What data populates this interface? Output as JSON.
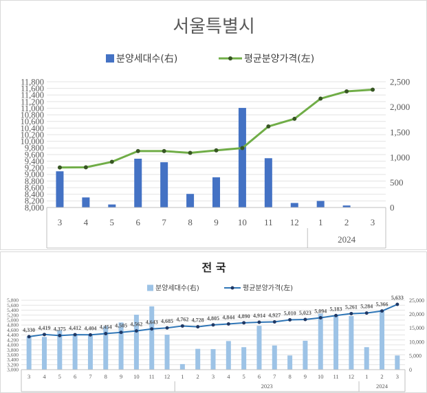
{
  "colors": {
    "bar_top": "#4472c4",
    "line_top": "#70ad47",
    "marker_top": "#375623",
    "bar_bottom": "#9dc3e6",
    "line_bottom": "#2e75b6",
    "marker_bottom": "#1f3864",
    "grid": "#e3e3e3",
    "axis_text": "#595959"
  },
  "chart_data": [
    {
      "type": "bar",
      "title": "서울특별시",
      "legend_position": "top",
      "grid": true,
      "categories": [
        "3",
        "4",
        "5",
        "6",
        "7",
        "8",
        "9",
        "10",
        "11",
        "12",
        "1",
        "2",
        "3"
      ],
      "year_group_labels": [
        {
          "label": "2024",
          "from": 10,
          "to": 12
        }
      ],
      "left_ticks": [
        "11,800",
        "11,600",
        "11,400",
        "11,200",
        "11,000",
        "10,800",
        "10,600",
        "10,400",
        "10,200",
        "10,000",
        "9,800",
        "9,600",
        "9,400",
        "9,200",
        "9,000",
        "8,800",
        "8,600",
        "8,400",
        "8,200",
        "8,000"
      ],
      "left_range": [
        8000,
        11800
      ],
      "right_ticks": [
        "2,500",
        "2,000",
        "1,500",
        "1,000",
        "500",
        "0"
      ],
      "right_range": [
        0,
        2500
      ],
      "series": [
        {
          "name": "분양세대수(右)",
          "kind": "bar",
          "axis": "right",
          "values": [
            720,
            200,
            60,
            970,
            900,
            270,
            600,
            1980,
            980,
            90,
            130,
            40,
            0
          ]
        },
        {
          "name": "평균분양가격(左)",
          "kind": "line",
          "axis": "left",
          "values": [
            9210,
            9215,
            9380,
            9705,
            9705,
            9650,
            9725,
            9795,
            10450,
            10680,
            11290,
            11510,
            11560
          ]
        }
      ]
    },
    {
      "type": "bar",
      "title": "전 국",
      "legend_position": "top",
      "grid": true,
      "categories": [
        "3",
        "4",
        "5",
        "6",
        "7",
        "8",
        "9",
        "10",
        "11",
        "12",
        "1",
        "2",
        "3",
        "4",
        "5",
        "6",
        "7",
        "8",
        "9",
        "10",
        "11",
        "12",
        "1",
        "2",
        "3"
      ],
      "year_group_labels": [
        {
          "label": "2023",
          "from": 10,
          "to": 21
        },
        {
          "label": "2024",
          "from": 22,
          "to": 24
        }
      ],
      "left_ticks": [
        "5,800",
        "5,600",
        "5,400",
        "5,200",
        "5,000",
        "4,800",
        "4,600",
        "4,400",
        "4,200",
        "4,000",
        "3,800",
        "3,600",
        "3,400",
        "3,200",
        "3,000"
      ],
      "left_range": [
        3000,
        5800
      ],
      "right_ticks": [
        "25,000",
        "20,000",
        "15,000",
        "10,000",
        "5,000",
        "0"
      ],
      "right_range": [
        0,
        25000
      ],
      "series": [
        {
          "name": "분양세대수(右)",
          "kind": "bar",
          "axis": "right",
          "values": [
            12000,
            11800,
            14200,
            12300,
            12800,
            15700,
            17000,
            19800,
            22800,
            12600,
            2000,
            7500,
            7400,
            10300,
            8100,
            15800,
            8700,
            5100,
            10400,
            20200,
            19600,
            19300,
            8100,
            21500,
            5100
          ]
        },
        {
          "name": "평균분양가격(左)",
          "kind": "line",
          "axis": "left",
          "values": [
            4330,
            4419,
            4375,
            4412,
            4404,
            4454,
            4505,
            4562,
            4643,
            4685,
            4762,
            4728,
            4805,
            4844,
            4890,
            4914,
            4927,
            5010,
            5023,
            5094,
            5183,
            5261,
            5284,
            5366,
            5633
          ],
          "data_labels": [
            "4,330",
            "4,419",
            "4,375",
            "4,412",
            "4,404",
            "4,454",
            "4,505",
            "4,562",
            "4,643",
            "4,685",
            "4,762",
            "4,728",
            "4,805",
            "4,844",
            "4,890",
            "4,914",
            "4,927",
            "5,010",
            "5,023",
            "5,094",
            "5,183",
            "5,261",
            "5,284",
            "5,366",
            "5,633"
          ]
        }
      ]
    }
  ]
}
